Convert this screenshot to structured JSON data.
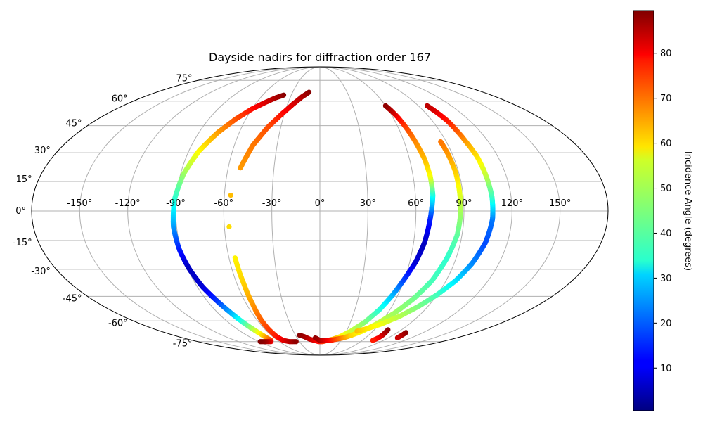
{
  "chart_data": {
    "type": "scatter",
    "projection": "mollweide",
    "title": "Dayside nadirs for diffraction order 167",
    "x_ticks": [
      "-150°",
      "-120°",
      "-90°",
      "-60°",
      "-30°",
      "0°",
      "30°",
      "60°",
      "90°",
      "120°",
      "150°"
    ],
    "x_tick_values": [
      -150,
      -120,
      -90,
      -60,
      -30,
      0,
      30,
      60,
      90,
      120,
      150
    ],
    "y_ticks": [
      "75°",
      "60°",
      "45°",
      "30°",
      "15°",
      "0°",
      "-15°",
      "-30°",
      "-45°",
      "-60°",
      "-75°"
    ],
    "y_tick_values": [
      75,
      60,
      45,
      30,
      15,
      0,
      -15,
      -30,
      -45,
      -60,
      -75
    ],
    "grid": true,
    "colormap": "jet",
    "colorbar": {
      "label": "Incidence Angle (degrees)",
      "range": [
        0.5,
        89.5
      ],
      "ticks": [
        "10",
        "20",
        "30",
        "40",
        "50",
        "60",
        "70",
        "80"
      ],
      "tick_values": [
        10,
        20,
        30,
        40,
        50,
        60,
        70,
        80
      ]
    },
    "series": [
      {
        "points": [
          [
            -38,
            64,
            89
          ],
          [
            -45,
            62,
            86
          ],
          [
            -52,
            59,
            82
          ],
          [
            -60,
            55,
            78
          ],
          [
            -68,
            49,
            72
          ],
          [
            -76,
            41,
            65
          ],
          [
            -83,
            31,
            57
          ],
          [
            -88,
            19,
            48
          ],
          [
            -91,
            6,
            38
          ],
          [
            -92,
            -8,
            26
          ],
          [
            -91,
            -20,
            14
          ],
          [
            -89,
            -30,
            6
          ],
          [
            -86,
            -40,
            8
          ],
          [
            -82,
            -48,
            16
          ],
          [
            -78,
            -56,
            28
          ],
          [
            -75,
            -62,
            40
          ],
          [
            -72,
            -67,
            52
          ],
          [
            -70,
            -71,
            62
          ],
          [
            -69,
            -74,
            72
          ],
          [
            -72,
            -75,
            80
          ],
          [
            -80,
            -75,
            86
          ],
          [
            -88,
            -75,
            89
          ]
        ]
      },
      {
        "points": [
          [
            -12,
            66,
            89
          ],
          [
            -18,
            63,
            86
          ],
          [
            -25,
            58,
            82
          ],
          [
            -32,
            52,
            78
          ],
          [
            -40,
            44,
            72
          ],
          [
            -47,
            34,
            68
          ],
          [
            -52,
            22,
            65
          ],
          [
            -56,
            8,
            62
          ],
          [
            -57,
            -8,
            59
          ],
          [
            -56,
            -24,
            57
          ],
          [
            -55,
            -38,
            60
          ],
          [
            -55,
            -50,
            65
          ],
          [
            -56,
            -60,
            70
          ],
          [
            -56,
            -66,
            73
          ],
          [
            -55,
            -71,
            76
          ],
          [
            -52,
            -74,
            80
          ],
          [
            -45,
            -75,
            84
          ],
          [
            -35,
            -75,
            88
          ]
        ]
      },
      {
        "points": [
          [
            -25,
            -70,
            89
          ],
          [
            -20,
            -71,
            87
          ],
          [
            -14,
            -73,
            84
          ],
          [
            -8,
            -74,
            81
          ],
          [
            -2,
            -75,
            78
          ],
          [
            4,
            -75,
            75
          ],
          [
            11,
            -74,
            70
          ],
          [
            18,
            -73,
            64
          ],
          [
            26,
            -71,
            58
          ],
          [
            35,
            -67,
            52
          ],
          [
            44,
            -61,
            46
          ],
          [
            51,
            -53,
            38
          ],
          [
            56,
            -44,
            28
          ],
          [
            60,
            -35,
            17
          ],
          [
            64,
            -26,
            8
          ],
          [
            67,
            -16,
            6
          ],
          [
            69,
            -4,
            14
          ],
          [
            71,
            8,
            35
          ],
          [
            71,
            18,
            55
          ],
          [
            70,
            27,
            62
          ],
          [
            68,
            36,
            66
          ],
          [
            66,
            44,
            72
          ],
          [
            64,
            50,
            78
          ],
          [
            62,
            54,
            84
          ],
          [
            60,
            57,
            88
          ]
        ]
      },
      {
        "points": [
          [
            -6,
            -72,
            88
          ],
          [
            0,
            -74,
            86
          ],
          [
            7,
            -74,
            82
          ],
          [
            15,
            -74,
            78
          ],
          [
            23,
            -73,
            72
          ],
          [
            31,
            -72,
            66
          ],
          [
            39,
            -70,
            60
          ],
          [
            48,
            -67,
            56
          ],
          [
            57,
            -62,
            52
          ],
          [
            66,
            -55,
            48
          ],
          [
            74,
            -46,
            44
          ],
          [
            80,
            -36,
            40
          ],
          [
            84,
            -24,
            38
          ],
          [
            87,
            -12,
            42
          ],
          [
            88,
            0,
            48
          ],
          [
            88,
            10,
            54
          ],
          [
            88,
            20,
            60
          ],
          [
            87,
            30,
            65
          ],
          [
            86,
            36,
            68
          ]
        ]
      },
      {
        "points": [
          [
            42,
            -67,
            62
          ],
          [
            52,
            -65,
            58
          ],
          [
            62,
            -62,
            55
          ],
          [
            73,
            -57,
            50
          ],
          [
            82,
            -51,
            45
          ],
          [
            90,
            -44,
            40
          ],
          [
            97,
            -36,
            32
          ],
          [
            102,
            -27,
            24
          ],
          [
            106,
            -16,
            18
          ],
          [
            108,
            -4,
            22
          ],
          [
            108,
            7,
            38
          ],
          [
            107,
            18,
            50
          ],
          [
            106,
            28,
            58
          ],
          [
            104,
            36,
            64
          ],
          [
            103,
            42,
            70
          ],
          [
            102,
            48,
            76
          ],
          [
            100,
            53,
            80
          ],
          [
            98,
            57,
            84
          ]
        ]
      },
      {
        "points": [
          [
            75,
            -66,
            89
          ],
          [
            76,
            -68,
            87
          ],
          [
            77,
            -70,
            84
          ],
          [
            77,
            -72,
            80
          ],
          [
            75,
            -74,
            76
          ],
          [
            100,
            -68,
            89
          ],
          [
            101,
            -70,
            86
          ],
          [
            102,
            -72,
            83
          ]
        ]
      }
    ]
  }
}
